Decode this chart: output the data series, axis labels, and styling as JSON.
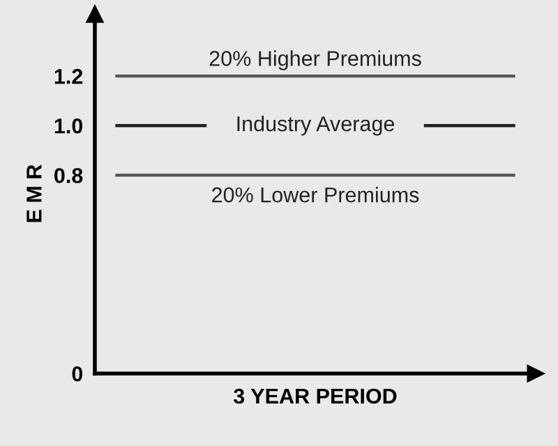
{
  "chart_data": {
    "type": "line",
    "xlabel": "3 YEAR PERIOD",
    "ylabel": "E M R",
    "categories": [
      null,
      null,
      null,
      null,
      null,
      null,
      null,
      null,
      null,
      null
    ],
    "ylim": [
      0,
      1.45
    ],
    "yticks": [
      0,
      0.8,
      {
        "value": 1,
        "label": "1.0"
      },
      1.2
    ],
    "grid": false,
    "series": [
      {
        "name": "20% Higher Premiums",
        "color": "#555555",
        "values": [
          1.2,
          1.2,
          1.2,
          1.2,
          1.2,
          1.2,
          1.2,
          1.2,
          1.2,
          1.2
        ]
      },
      {
        "name": "Industry Average",
        "color": "#222222",
        "values": [
          1.0,
          1.0,
          1.0,
          null,
          null,
          null,
          null,
          1.0,
          1.0,
          1.0
        ]
      },
      {
        "name": "20% Lower Premiums",
        "color": "#555555",
        "values": [
          0.8,
          0.8,
          0.8,
          0.8,
          0.8,
          0.8,
          0.8,
          0.8,
          0.8,
          0.8
        ]
      }
    ]
  }
}
